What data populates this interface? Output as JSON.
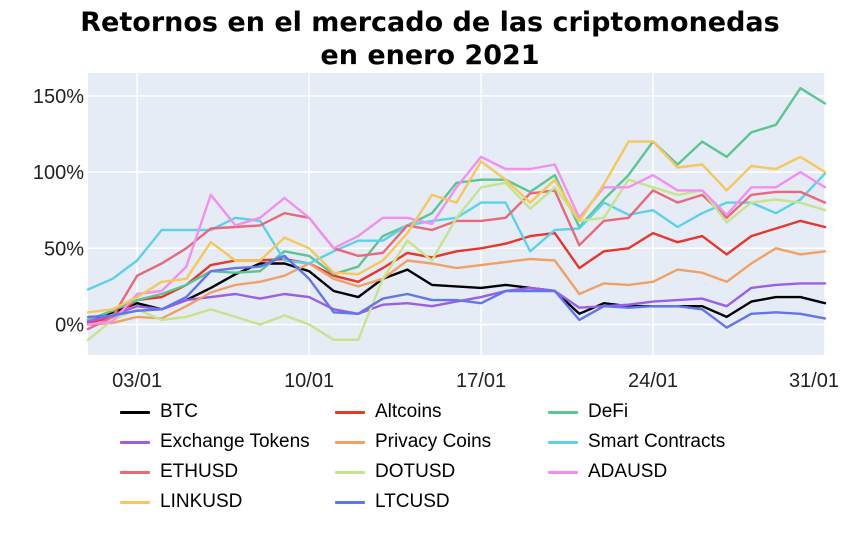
{
  "title_line1": "Retornos en el mercado de las criptomonedas",
  "title_line2": "en enero 2021",
  "chart_data": {
    "type": "line",
    "title": "Retornos en el mercado de las criptomonedas en enero 2021",
    "x_tick_labels": [
      "03/01",
      "10/01",
      "17/01",
      "24/01",
      "31/01"
    ],
    "x_tick_positions": [
      3,
      10,
      17,
      24,
      31
    ],
    "y_tick_labels": [
      "0%",
      "50%",
      "100%",
      "150%"
    ],
    "y_tick_values": [
      0,
      50,
      100,
      150
    ],
    "xlim": [
      1,
      31
    ],
    "ylim": [
      -20,
      165
    ],
    "grid": true,
    "legend_position": "bottom",
    "x": [
      1,
      2,
      3,
      4,
      5,
      6,
      7,
      8,
      9,
      10,
      11,
      12,
      13,
      14,
      15,
      16,
      17,
      18,
      19,
      20,
      21,
      22,
      23,
      24,
      25,
      26,
      27,
      28,
      29,
      30,
      31
    ],
    "series": [
      {
        "name": "BTC",
        "color": "#000000",
        "values": [
          3,
          8,
          14,
          10,
          16,
          24,
          33,
          40,
          40,
          35,
          22,
          18,
          30,
          36,
          26,
          25,
          24,
          26,
          24,
          22,
          7,
          14,
          12,
          12,
          12,
          12,
          5,
          15,
          18,
          18,
          14
        ]
      },
      {
        "name": "Altcoins",
        "color": "#e8362c",
        "values": [
          1,
          5,
          16,
          18,
          26,
          39,
          42,
          42,
          43,
          40,
          32,
          28,
          37,
          47,
          44,
          48,
          50,
          53,
          58,
          60,
          37,
          48,
          50,
          60,
          54,
          58,
          46,
          58,
          63,
          68,
          64
        ]
      },
      {
        "name": "DeFi",
        "color": "#5cc591",
        "values": [
          3,
          9,
          16,
          20,
          26,
          35,
          34,
          35,
          48,
          45,
          33,
          38,
          58,
          65,
          73,
          93,
          95,
          95,
          87,
          98,
          64,
          82,
          98,
          120,
          105,
          120,
          110,
          126,
          131,
          155,
          145
        ]
      },
      {
        "name": "Exchange Tokens",
        "color": "#9a5ee8",
        "values": [
          2,
          6,
          12,
          10,
          16,
          18,
          20,
          17,
          20,
          18,
          10,
          7,
          13,
          14,
          12,
          15,
          18,
          22,
          24,
          22,
          11,
          12,
          13,
          15,
          16,
          17,
          12,
          24,
          26,
          27,
          27
        ]
      },
      {
        "name": "Privacy Coins",
        "color": "#f0a264",
        "values": [
          0,
          1,
          5,
          4,
          12,
          21,
          26,
          28,
          32,
          40,
          30,
          25,
          30,
          42,
          40,
          37,
          39,
          41,
          43,
          42,
          20,
          27,
          26,
          28,
          36,
          34,
          28,
          40,
          50,
          46,
          48
        ]
      },
      {
        "name": "Smart Contracts",
        "color": "#5ed1ea",
        "values": [
          23,
          30,
          42,
          62,
          62,
          62,
          70,
          68,
          42,
          40,
          48,
          55,
          55,
          65,
          68,
          70,
          80,
          80,
          48,
          62,
          63,
          80,
          72,
          75,
          64,
          73,
          80,
          80,
          73,
          82,
          99
        ]
      },
      {
        "name": "ETHUSD",
        "color": "#e8697a",
        "values": [
          -3,
          5,
          32,
          40,
          50,
          63,
          64,
          65,
          73,
          70,
          50,
          45,
          47,
          65,
          62,
          68,
          68,
          70,
          86,
          88,
          52,
          68,
          70,
          88,
          80,
          85,
          70,
          85,
          87,
          87,
          80
        ]
      },
      {
        "name": "DOTUSD",
        "color": "#c7e48a",
        "values": [
          -10,
          3,
          10,
          3,
          5,
          10,
          5,
          0,
          6,
          0,
          -10,
          -10,
          30,
          55,
          42,
          70,
          90,
          93,
          76,
          90,
          68,
          70,
          95,
          90,
          85,
          88,
          67,
          80,
          82,
          80,
          75
        ]
      },
      {
        "name": "ADAUSD",
        "color": "#f38ef2",
        "values": [
          0,
          2,
          20,
          22,
          38,
          85,
          65,
          70,
          83,
          70,
          50,
          58,
          70,
          70,
          66,
          90,
          110,
          102,
          102,
          105,
          70,
          90,
          90,
          98,
          88,
          88,
          72,
          90,
          90,
          100,
          90
        ]
      },
      {
        "name": "LINKUSD",
        "color": "#f5c85a",
        "values": [
          8,
          10,
          18,
          28,
          30,
          54,
          42,
          42,
          57,
          50,
          34,
          33,
          42,
          60,
          85,
          80,
          107,
          95,
          80,
          95,
          68,
          92,
          120,
          120,
          103,
          105,
          88,
          104,
          102,
          110,
          100
        ]
      },
      {
        "name": "LTCUSD",
        "color": "#6375ea",
        "values": [
          5,
          6,
          9,
          10,
          18,
          35,
          37,
          38,
          45,
          30,
          8,
          7,
          17,
          20,
          16,
          16,
          14,
          22,
          22,
          22,
          3,
          12,
          11,
          12,
          12,
          10,
          -2,
          7,
          8,
          7,
          4
        ]
      }
    ]
  }
}
